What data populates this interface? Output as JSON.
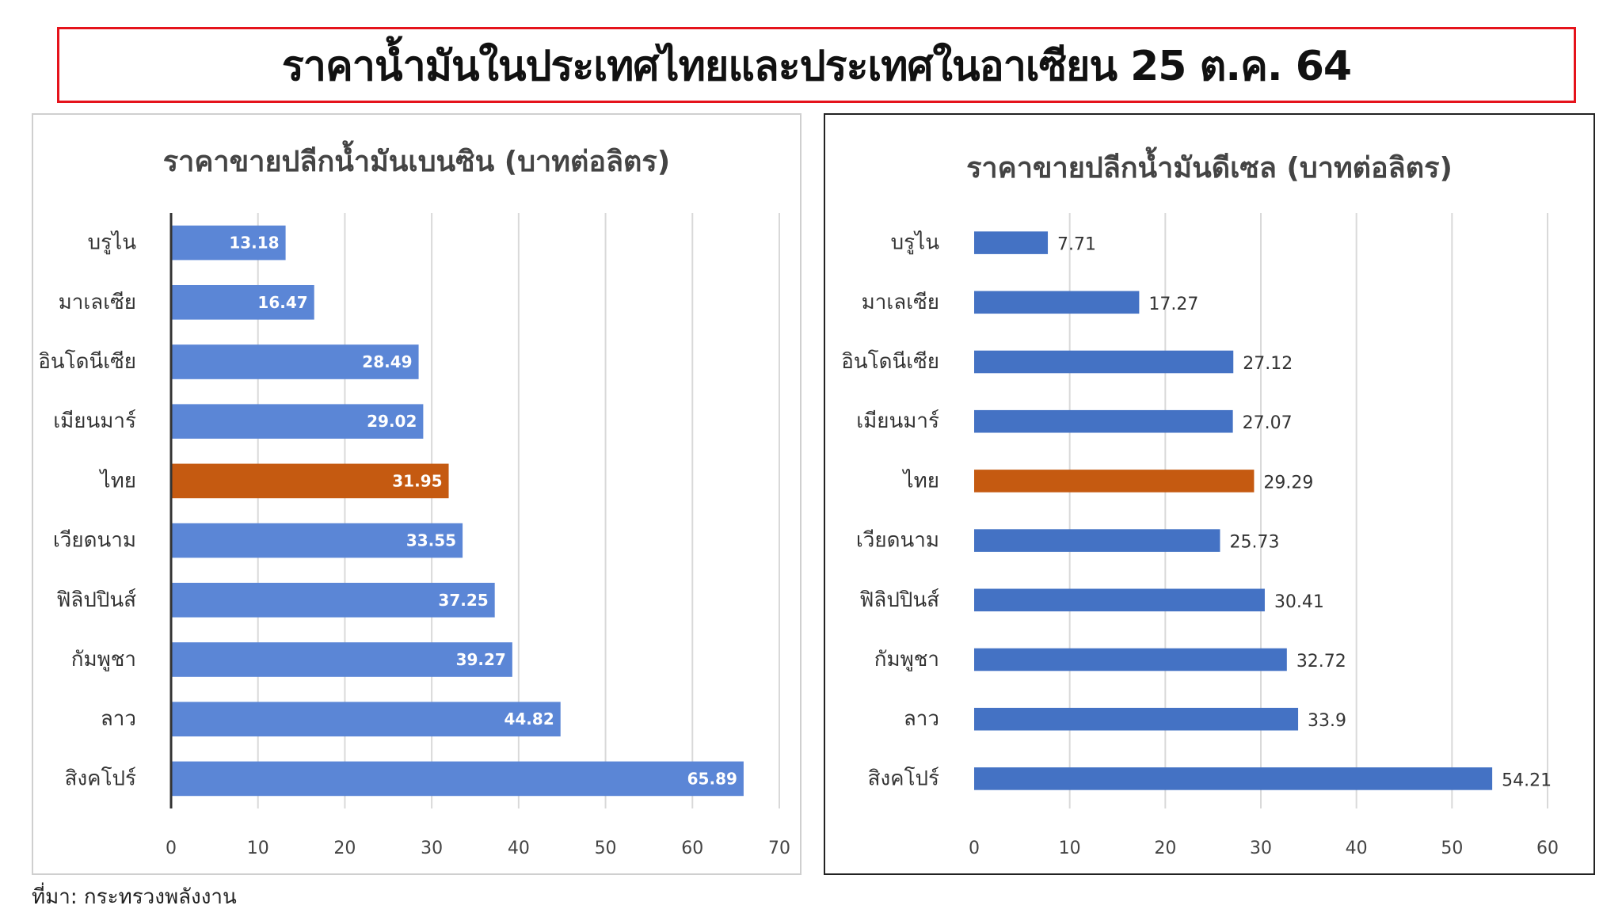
{
  "title": "ราคาน้ำมันในประเทศไทยและประเทศในอาเซียน 25 ต.ค. 64",
  "source": "ที่มา: กระทรวงพลังงาน",
  "colors": {
    "title_border": "#e5131b",
    "bar_blue": "#4472c4",
    "bar_blue_left": "#5b86d6",
    "bar_highlight": "#c55a11",
    "gridline": "#d9d9d9"
  },
  "chart_data": [
    {
      "type": "bar",
      "orientation": "horizontal",
      "title": "ราคาขายปลีกน้ำมันเบนซิน (บาทต่อลิตร)",
      "categories": [
        "บรูไน",
        "มาเลเซีย",
        "อินโดนีเซีย",
        "เมียนมาร์",
        "ไทย",
        "เวียดนาม",
        "ฟิลิปปินส์",
        "กัมพูชา",
        "ลาว",
        "สิงคโปร์"
      ],
      "values": [
        13.18,
        16.47,
        28.49,
        29.02,
        31.95,
        33.55,
        37.25,
        39.27,
        44.82,
        65.89
      ],
      "labels": [
        "13.18",
        "16.47",
        "28.49",
        "29.02",
        "31.95",
        "33.55",
        "37.25",
        "39.27",
        "44.82",
        "65.89"
      ],
      "highlight": "ไทย",
      "xlim": [
        0,
        70
      ],
      "ticks": [
        "0",
        "10",
        "20",
        "30",
        "40",
        "50",
        "60",
        "70"
      ],
      "label_position": "inside-end",
      "grid": true
    },
    {
      "type": "bar",
      "orientation": "horizontal",
      "title": "ราคาขายปลีกน้ำมันดีเซล (บาทต่อลิตร)",
      "categories": [
        "บรูไน",
        "มาเลเซีย",
        "อินโดนีเซีย",
        "เมียนมาร์",
        "ไทย",
        "เวียดนาม",
        "ฟิลิปปินส์",
        "กัมพูชา",
        "ลาว",
        "สิงคโปร์"
      ],
      "values": [
        7.71,
        17.27,
        27.12,
        27.07,
        29.29,
        25.73,
        30.41,
        32.72,
        33.9,
        54.21
      ],
      "labels": [
        "7.71",
        "17.27",
        "27.12",
        "27.07",
        "29.29",
        "25.73",
        "30.41",
        "32.72",
        "33.9",
        "54.21"
      ],
      "highlight": "ไทย",
      "xlim": [
        0,
        60
      ],
      "ticks": [
        "0",
        "10",
        "20",
        "30",
        "40",
        "50",
        "60"
      ],
      "label_position": "outside-end",
      "grid": true
    }
  ]
}
